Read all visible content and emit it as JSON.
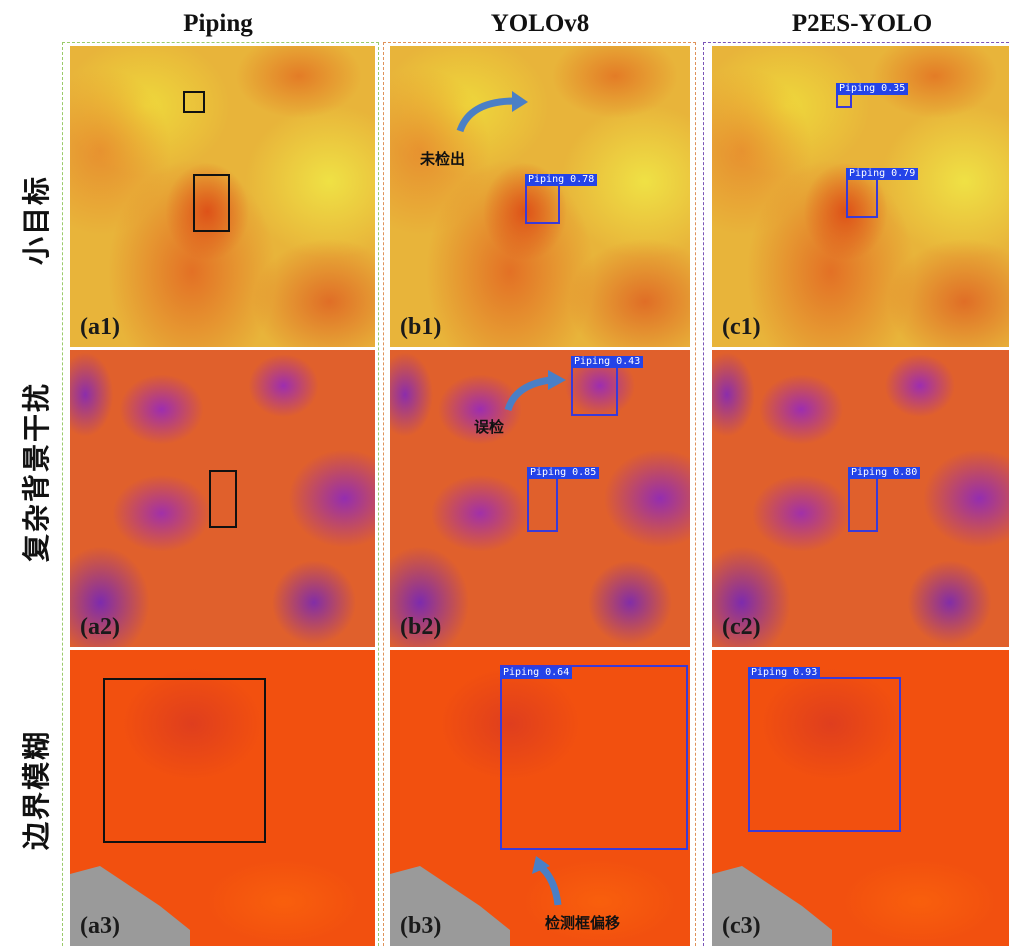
{
  "columns": [
    {
      "title": "Piping"
    },
    {
      "title": "YOLOv8"
    },
    {
      "title": "P2ES-YOLO"
    }
  ],
  "rows": [
    {
      "label": "小目标"
    },
    {
      "label": "复杂背景干扰"
    },
    {
      "label": "边界模糊"
    }
  ],
  "panels": [
    [
      {
        "label": "(a1)"
      },
      {
        "label": "(b1)",
        "detections": [
          {
            "label": "Piping 0.78"
          }
        ],
        "annotation": "未检出"
      },
      {
        "label": "(c1)",
        "detections": [
          {
            "label": "Piping 0.35"
          },
          {
            "label": "Piping 0.79"
          }
        ]
      }
    ],
    [
      {
        "label": "(a2)"
      },
      {
        "label": "(b2)",
        "detections": [
          {
            "label": "Piping 0.43"
          },
          {
            "label": "Piping 0.85"
          }
        ],
        "annotation": "误检"
      },
      {
        "label": "(c2)",
        "detections": [
          {
            "label": "Piping 0.80"
          }
        ]
      }
    ],
    [
      {
        "label": "(a3)"
      },
      {
        "label": "(b3)",
        "detections": [
          {
            "label": "Piping 0.64"
          }
        ],
        "annotation": "检测框偏移"
      },
      {
        "label": "(c3)",
        "detections": [
          {
            "label": "Piping 0.93"
          }
        ]
      }
    ]
  ]
}
